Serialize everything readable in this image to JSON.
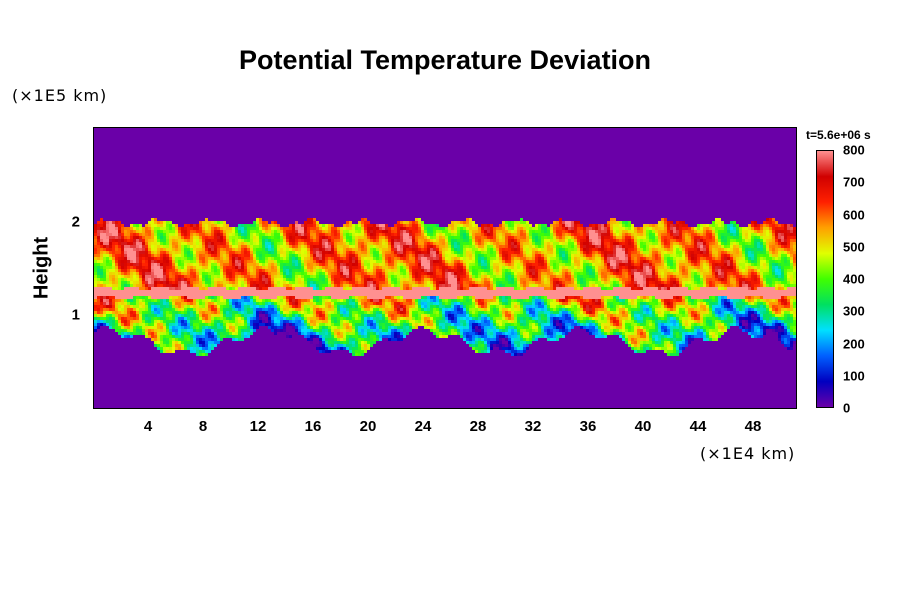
{
  "chart_data": {
    "type": "heatmap",
    "title": "Potential Temperature Deviation",
    "xlabel": "",
    "ylabel": "Height",
    "x_unit": "(×1E4 km)",
    "y_unit": "(×1E5 km)",
    "xlim": [
      0,
      51
    ],
    "ylim": [
      0,
      3
    ],
    "x_ticks": [
      "4",
      "8",
      "12",
      "16",
      "20",
      "24",
      "28",
      "32",
      "36",
      "40",
      "44",
      "48"
    ],
    "y_ticks": [
      "1",
      "2"
    ],
    "time_label": "t=5.6e+06 s",
    "colorbar": {
      "min": 0,
      "max": 800,
      "ticks": [
        "0",
        "100",
        "200",
        "300",
        "400",
        "500",
        "600",
        "700",
        "800"
      ],
      "colors": [
        "#6a00a8",
        "#0000c0",
        "#0060ff",
        "#00e0ff",
        "#00e060",
        "#40ff00",
        "#e0ff00",
        "#ffa000",
        "#ff2000",
        "#d00000",
        "#ff9090"
      ]
    },
    "layers": [
      {
        "name": "",
        "y_from": 2.0,
        "y_to": 3.0,
        "value": 0
      },
      {
        "name": "",
        "y_from": 1.3,
        "y_to": 2.0,
        "value_range": [
          300,
          800
        ]
      },
      {
        "name": "",
        "y_from": 1.2,
        "y_to": 1.3,
        "value": 800
      },
      {
        "name": "",
        "y_from": 0.6,
        "y_to": 1.2,
        "value_range": [
          100,
          800
        ]
      },
      {
        "name": "",
        "y_from": 0.0,
        "y_to": 0.6,
        "value": 0
      }
    ]
  }
}
